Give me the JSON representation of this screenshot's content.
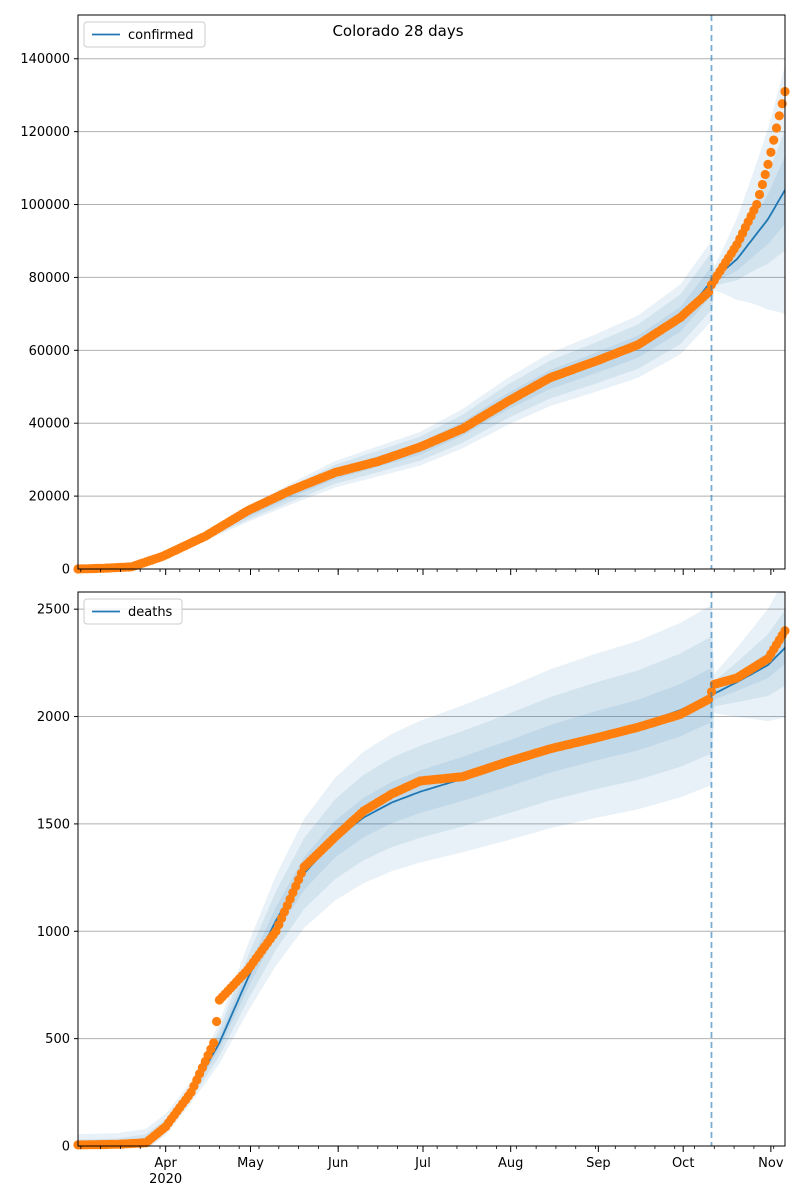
{
  "title": "Colorado 28 days",
  "colors": {
    "model_line": "#1f77b4",
    "observed_points": "#ff7f0e",
    "band_fill": "#1f77b4",
    "grid": "#b0b0b0"
  },
  "x_axis": {
    "month_labels": [
      "Apr",
      "May",
      "Jun",
      "Jul",
      "Aug",
      "Sep",
      "Oct",
      "Nov"
    ],
    "year_label": "2020"
  },
  "chart_data": [
    {
      "type": "line",
      "panel": "top",
      "legend": "confirmed",
      "legend_position": "top-left",
      "grid": "horizontal",
      "start_date": "2020-03-01",
      "end_date": "2020-11-06",
      "forecast_start_date": "2020-10-11",
      "ylim": [
        0,
        152000
      ],
      "yticks": [
        0,
        20000,
        40000,
        60000,
        80000,
        100000,
        120000,
        140000
      ],
      "model_keypoints": {
        "dates": [
          "2020-03-01",
          "2020-03-10",
          "2020-03-20",
          "2020-03-31",
          "2020-04-15",
          "2020-04-30",
          "2020-05-15",
          "2020-05-31",
          "2020-06-15",
          "2020-06-30",
          "2020-07-15",
          "2020-07-31",
          "2020-08-15",
          "2020-08-31",
          "2020-09-15",
          "2020-09-30",
          "2020-10-11",
          "2020-10-20",
          "2020-10-31",
          "2020-11-06"
        ],
        "values": [
          0,
          300,
          1200,
          4000,
          9000,
          15000,
          20500,
          26000,
          29500,
          33000,
          38500,
          46000,
          52000,
          56500,
          61000,
          68500,
          79000,
          85000,
          96000,
          104000
        ]
      },
      "observed_keypoints": {
        "dates": [
          "2020-03-01",
          "2020-03-10",
          "2020-03-20",
          "2020-03-31",
          "2020-04-15",
          "2020-04-30",
          "2020-05-15",
          "2020-05-31",
          "2020-06-15",
          "2020-06-30",
          "2020-07-15",
          "2020-07-31",
          "2020-08-15",
          "2020-08-31",
          "2020-09-15",
          "2020-09-30",
          "2020-10-10",
          "2020-10-11",
          "2020-10-20",
          "2020-10-27",
          "2020-10-31",
          "2020-11-03",
          "2020-11-06"
        ],
        "values": [
          0,
          200,
          600,
          3500,
          9000,
          16000,
          21500,
          26500,
          29500,
          33500,
          38500,
          46000,
          52500,
          57000,
          61500,
          69000,
          76000,
          78000,
          89000,
          100000,
          111000,
          121000,
          131000
        ]
      },
      "band_halfwidth_fraction": [
        0.05,
        0.1,
        0.14
      ],
      "band_min_halfwidth": [
        0,
        400,
        700
      ],
      "forecast_band_growth": [
        0.08,
        0.14,
        0.3
      ]
    },
    {
      "type": "line",
      "panel": "bottom",
      "legend": "deaths",
      "legend_position": "top-left",
      "grid": "horizontal",
      "start_date": "2020-03-01",
      "end_date": "2020-11-06",
      "forecast_start_date": "2020-10-11",
      "ylim": [
        0,
        2580
      ],
      "yticks": [
        0,
        500,
        1000,
        1500,
        2000,
        2500
      ],
      "model_keypoints": {
        "dates": [
          "2020-03-01",
          "2020-03-15",
          "2020-03-25",
          "2020-04-01",
          "2020-04-10",
          "2020-04-20",
          "2020-04-30",
          "2020-05-10",
          "2020-05-20",
          "2020-05-31",
          "2020-06-10",
          "2020-06-20",
          "2020-06-30",
          "2020-07-15",
          "2020-07-31",
          "2020-08-15",
          "2020-08-31",
          "2020-09-15",
          "2020-09-30",
          "2020-10-11",
          "2020-10-20",
          "2020-10-31",
          "2020-11-06"
        ],
        "values": [
          5,
          10,
          30,
          100,
          250,
          480,
          780,
          1050,
          1270,
          1430,
          1530,
          1600,
          1650,
          1710,
          1780,
          1850,
          1910,
          1960,
          2030,
          2100,
          2160,
          2240,
          2320
        ]
      },
      "observed_keypoints": {
        "dates": [
          "2020-03-01",
          "2020-03-15",
          "2020-03-25",
          "2020-04-01",
          "2020-04-10",
          "2020-04-18",
          "2020-04-20",
          "2020-04-30",
          "2020-05-10",
          "2020-05-20",
          "2020-05-31",
          "2020-06-10",
          "2020-06-20",
          "2020-06-30",
          "2020-07-15",
          "2020-07-31",
          "2020-08-15",
          "2020-08-31",
          "2020-09-15",
          "2020-09-30",
          "2020-10-10",
          "2020-10-12",
          "2020-10-20",
          "2020-10-31",
          "2020-11-06"
        ],
        "values": [
          5,
          8,
          15,
          90,
          250,
          480,
          680,
          820,
          1000,
          1300,
          1440,
          1560,
          1640,
          1700,
          1720,
          1790,
          1850,
          1900,
          1950,
          2010,
          2080,
          2150,
          2180,
          2270,
          2400
        ]
      },
      "band_halfwidth_fraction": [
        0.06,
        0.13,
        0.2
      ],
      "band_min_halfwidth": [
        10,
        25,
        50
      ],
      "forecast_band_growth": [
        0.02,
        0.05,
        0.1
      ]
    }
  ]
}
